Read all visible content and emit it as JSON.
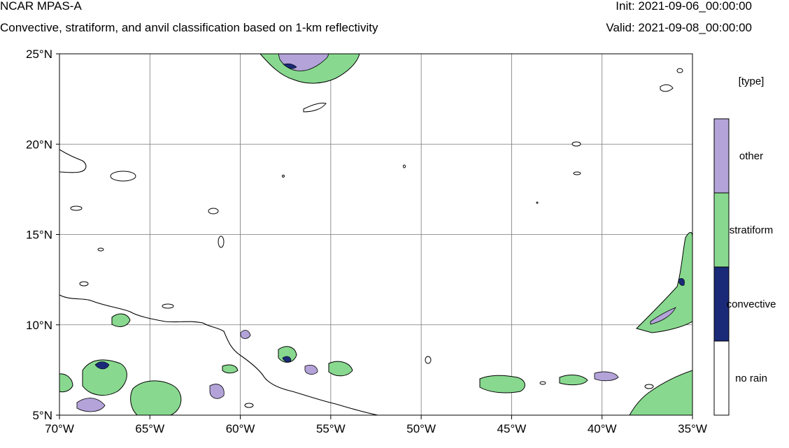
{
  "header": {
    "title": "NCAR MPAS-A",
    "subtitle": "Convective, stratiform, and anvil classification based on 1-km reflectivity",
    "init": "Init: 2021-09-06_00:00:00",
    "valid": "Valid: 2021-09-08_00:00:00"
  },
  "map": {
    "lon_range": [
      -70,
      -35
    ],
    "lat_range": [
      5,
      25
    ],
    "x_ticks": [
      "70°W",
      "65°W",
      "60°W",
      "55°W",
      "50°W",
      "45°W",
      "40°W",
      "35°W"
    ],
    "y_ticks": [
      "25°N",
      "20°N",
      "15°N",
      "10°N",
      "5°N"
    ],
    "grid": true
  },
  "legend": {
    "title": "[type]",
    "items": [
      {
        "label": "other",
        "color": "#b3a3d9"
      },
      {
        "label": "stratiform",
        "color": "#88d98f"
      },
      {
        "label": "convective",
        "color": "#1b2a78"
      },
      {
        "label": "no rain",
        "color": "#ffffff"
      }
    ]
  }
}
